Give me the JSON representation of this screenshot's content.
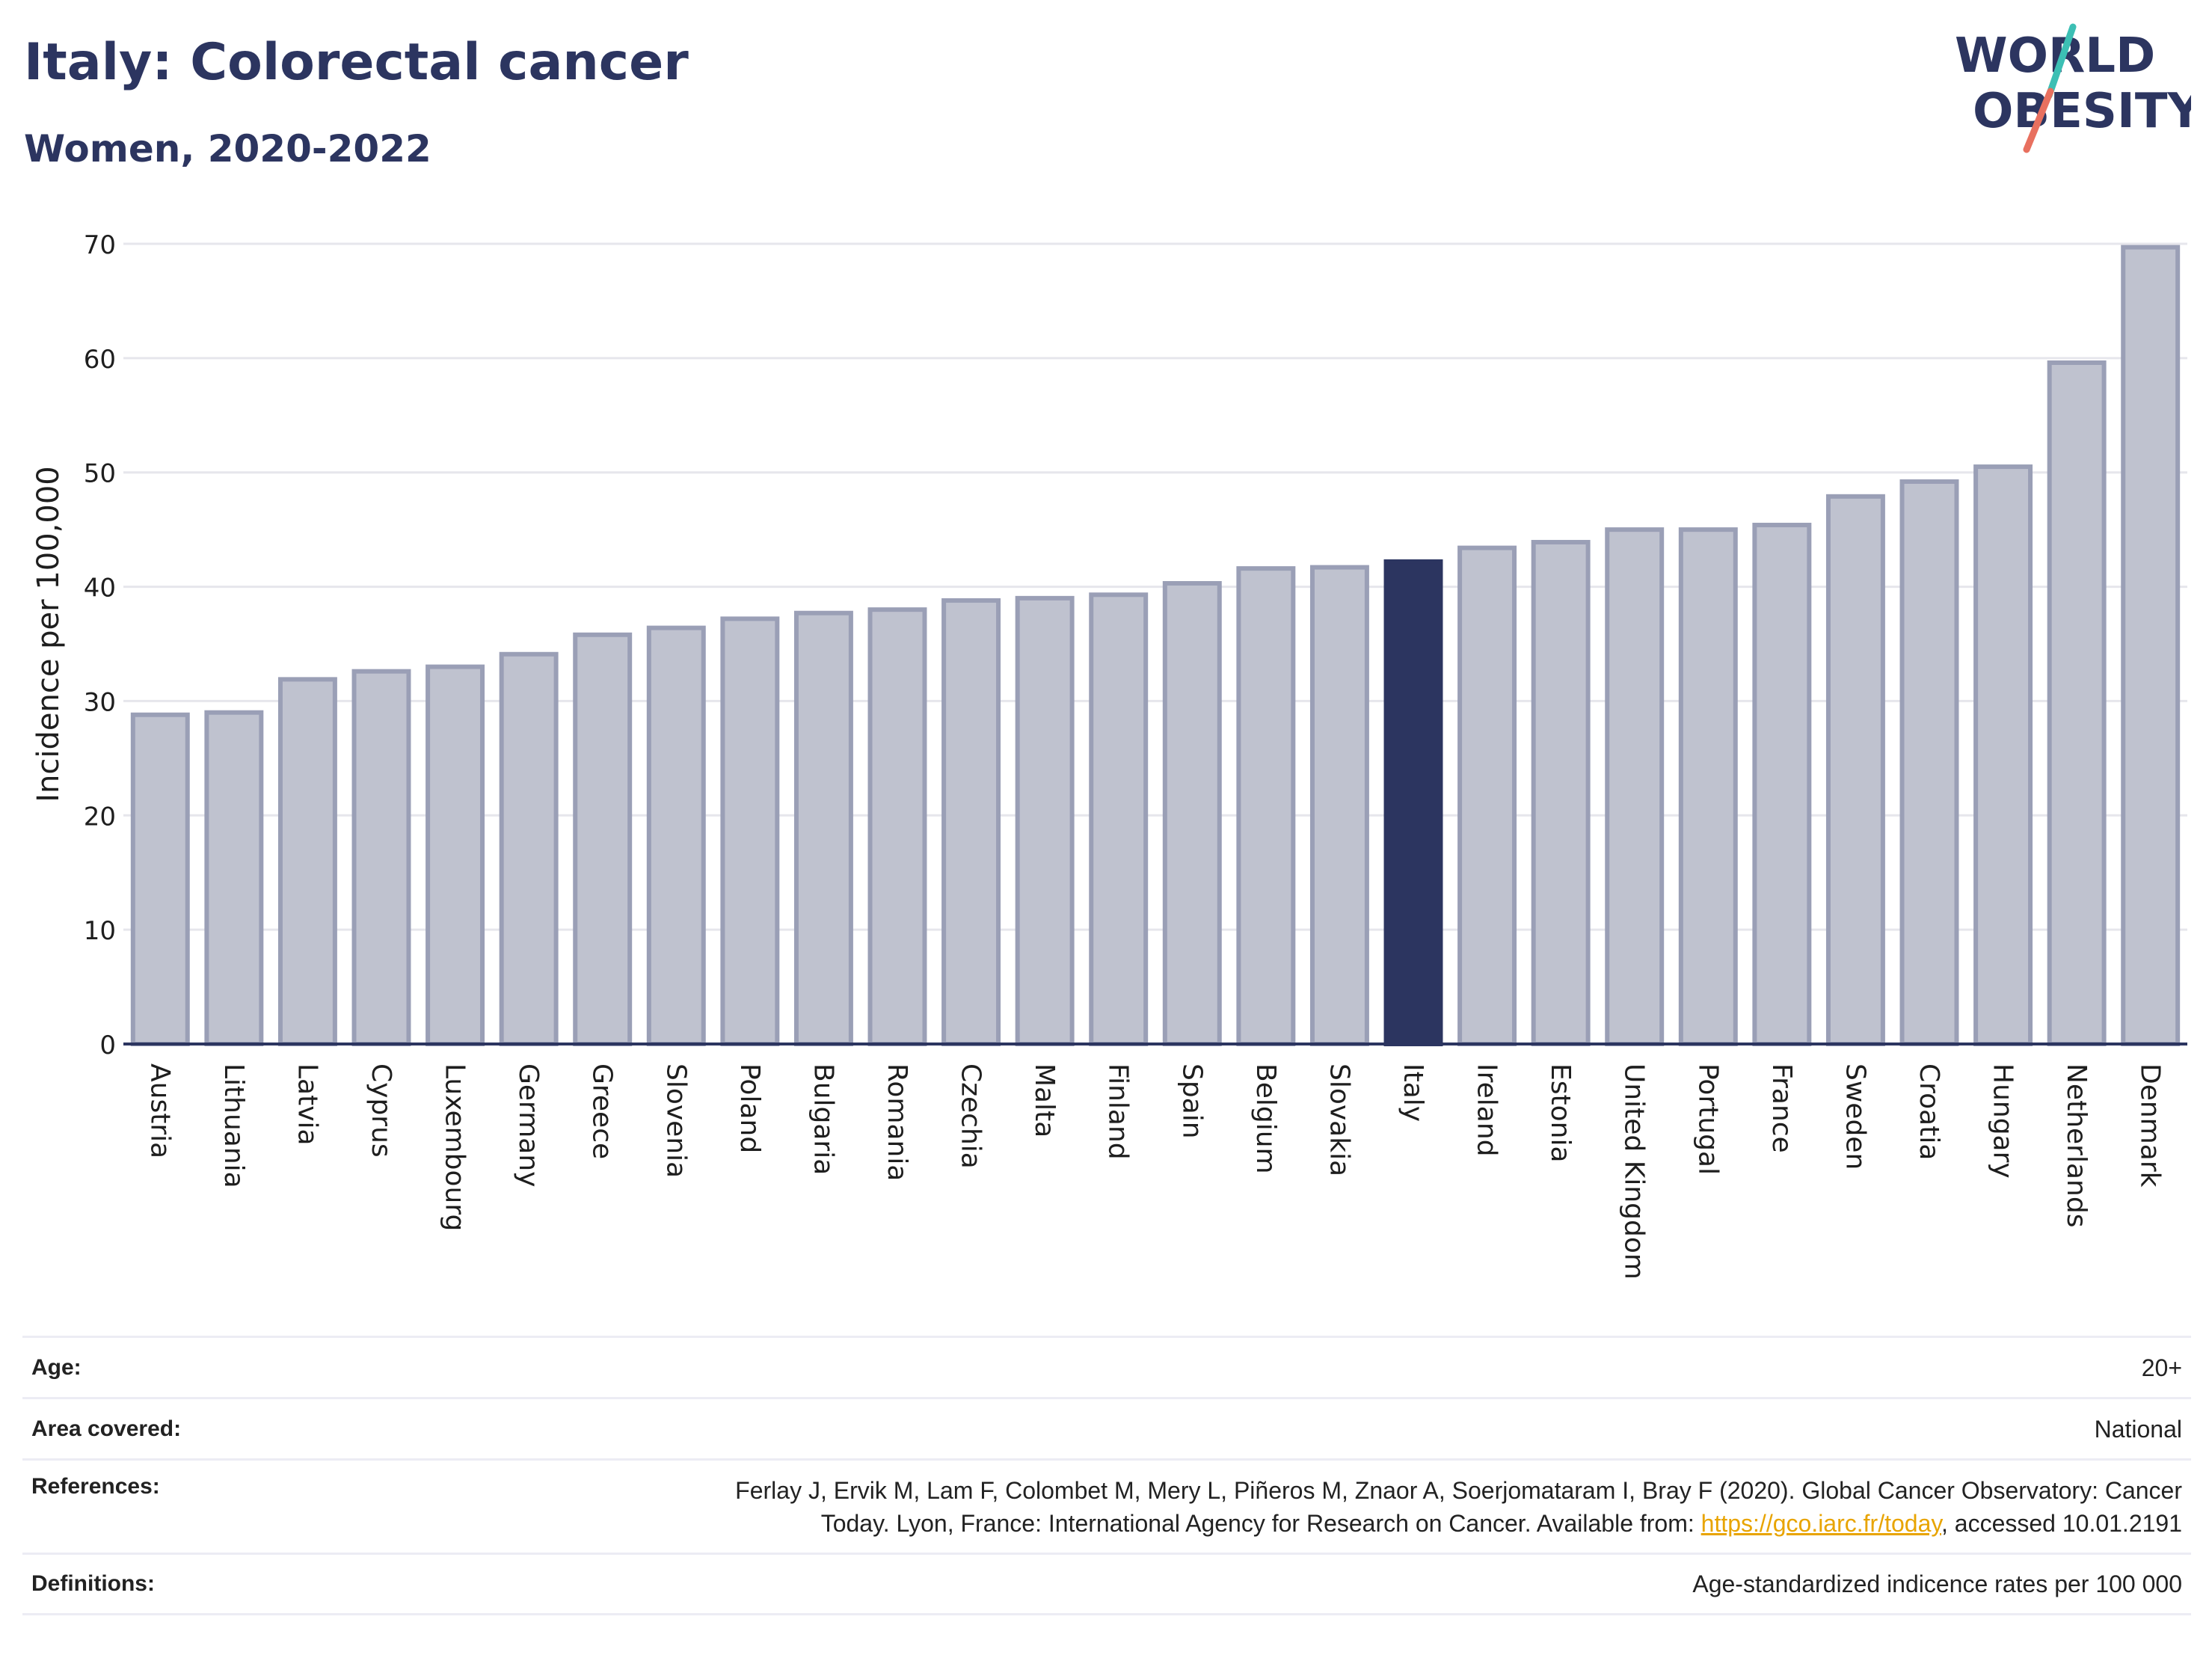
{
  "header": {
    "title": "Italy: Colorectal cancer",
    "subtitle": "Women, 2020-2022"
  },
  "logo": {
    "line1": "WORLD",
    "line2": "OBESITY",
    "colors": {
      "text": "#2c3560",
      "slash_top": "#3cbfb4",
      "slash_bottom": "#e8705f"
    }
  },
  "colors": {
    "highlight": "#2c3560",
    "bar_fill": "#bfc2cf",
    "bar_stroke": "#9a9fb6",
    "grid": "#e6e6ec",
    "axis": "#2c3560"
  },
  "chart_data": {
    "type": "bar",
    "ylabel": "Incidence per 100,000",
    "ylim": [
      0,
      70
    ],
    "yticks": [
      0,
      10,
      20,
      30,
      40,
      50,
      60,
      70
    ],
    "highlight": "Italy",
    "categories": [
      "Austria",
      "Lithuania",
      "Latvia",
      "Cyprus",
      "Luxembourg",
      "Germany",
      "Greece",
      "Slovenia",
      "Poland",
      "Bulgaria",
      "Romania",
      "Czechia",
      "Malta",
      "Finland",
      "Spain",
      "Belgium",
      "Slovakia",
      "Italy",
      "Ireland",
      "Estonia",
      "United Kingdom",
      "Portugal",
      "France",
      "Sweden",
      "Croatia",
      "Hungary",
      "Netherlands",
      "Denmark"
    ],
    "values": [
      28.8,
      29.0,
      31.9,
      32.6,
      33.0,
      34.1,
      35.8,
      36.4,
      37.2,
      37.7,
      38.0,
      38.8,
      39.0,
      39.3,
      40.3,
      41.6,
      41.7,
      42.2,
      43.4,
      43.9,
      45.0,
      45.0,
      45.4,
      47.9,
      49.2,
      50.5,
      59.6,
      69.7
    ]
  },
  "meta": {
    "age": {
      "label": "Age:",
      "value": "20+"
    },
    "area": {
      "label": "Area covered:",
      "value": "National"
    },
    "references": {
      "label": "References:",
      "text1": "Ferlay J, Ervik M, Lam F, Colombet M, Mery L, Piñeros M, Znaor A, Soerjomataram I, Bray F (2020). Global Cancer Observatory: Cancer",
      "text2": "Today. Lyon, France: International Agency for Research on Cancer. Available from:",
      "link": "https://gco.iarc.fr/today",
      "text3": ", accessed 10.01.2191"
    },
    "definitions": {
      "label": "Definitions:",
      "value": "Age-standardized indicence rates per 100 000"
    }
  }
}
